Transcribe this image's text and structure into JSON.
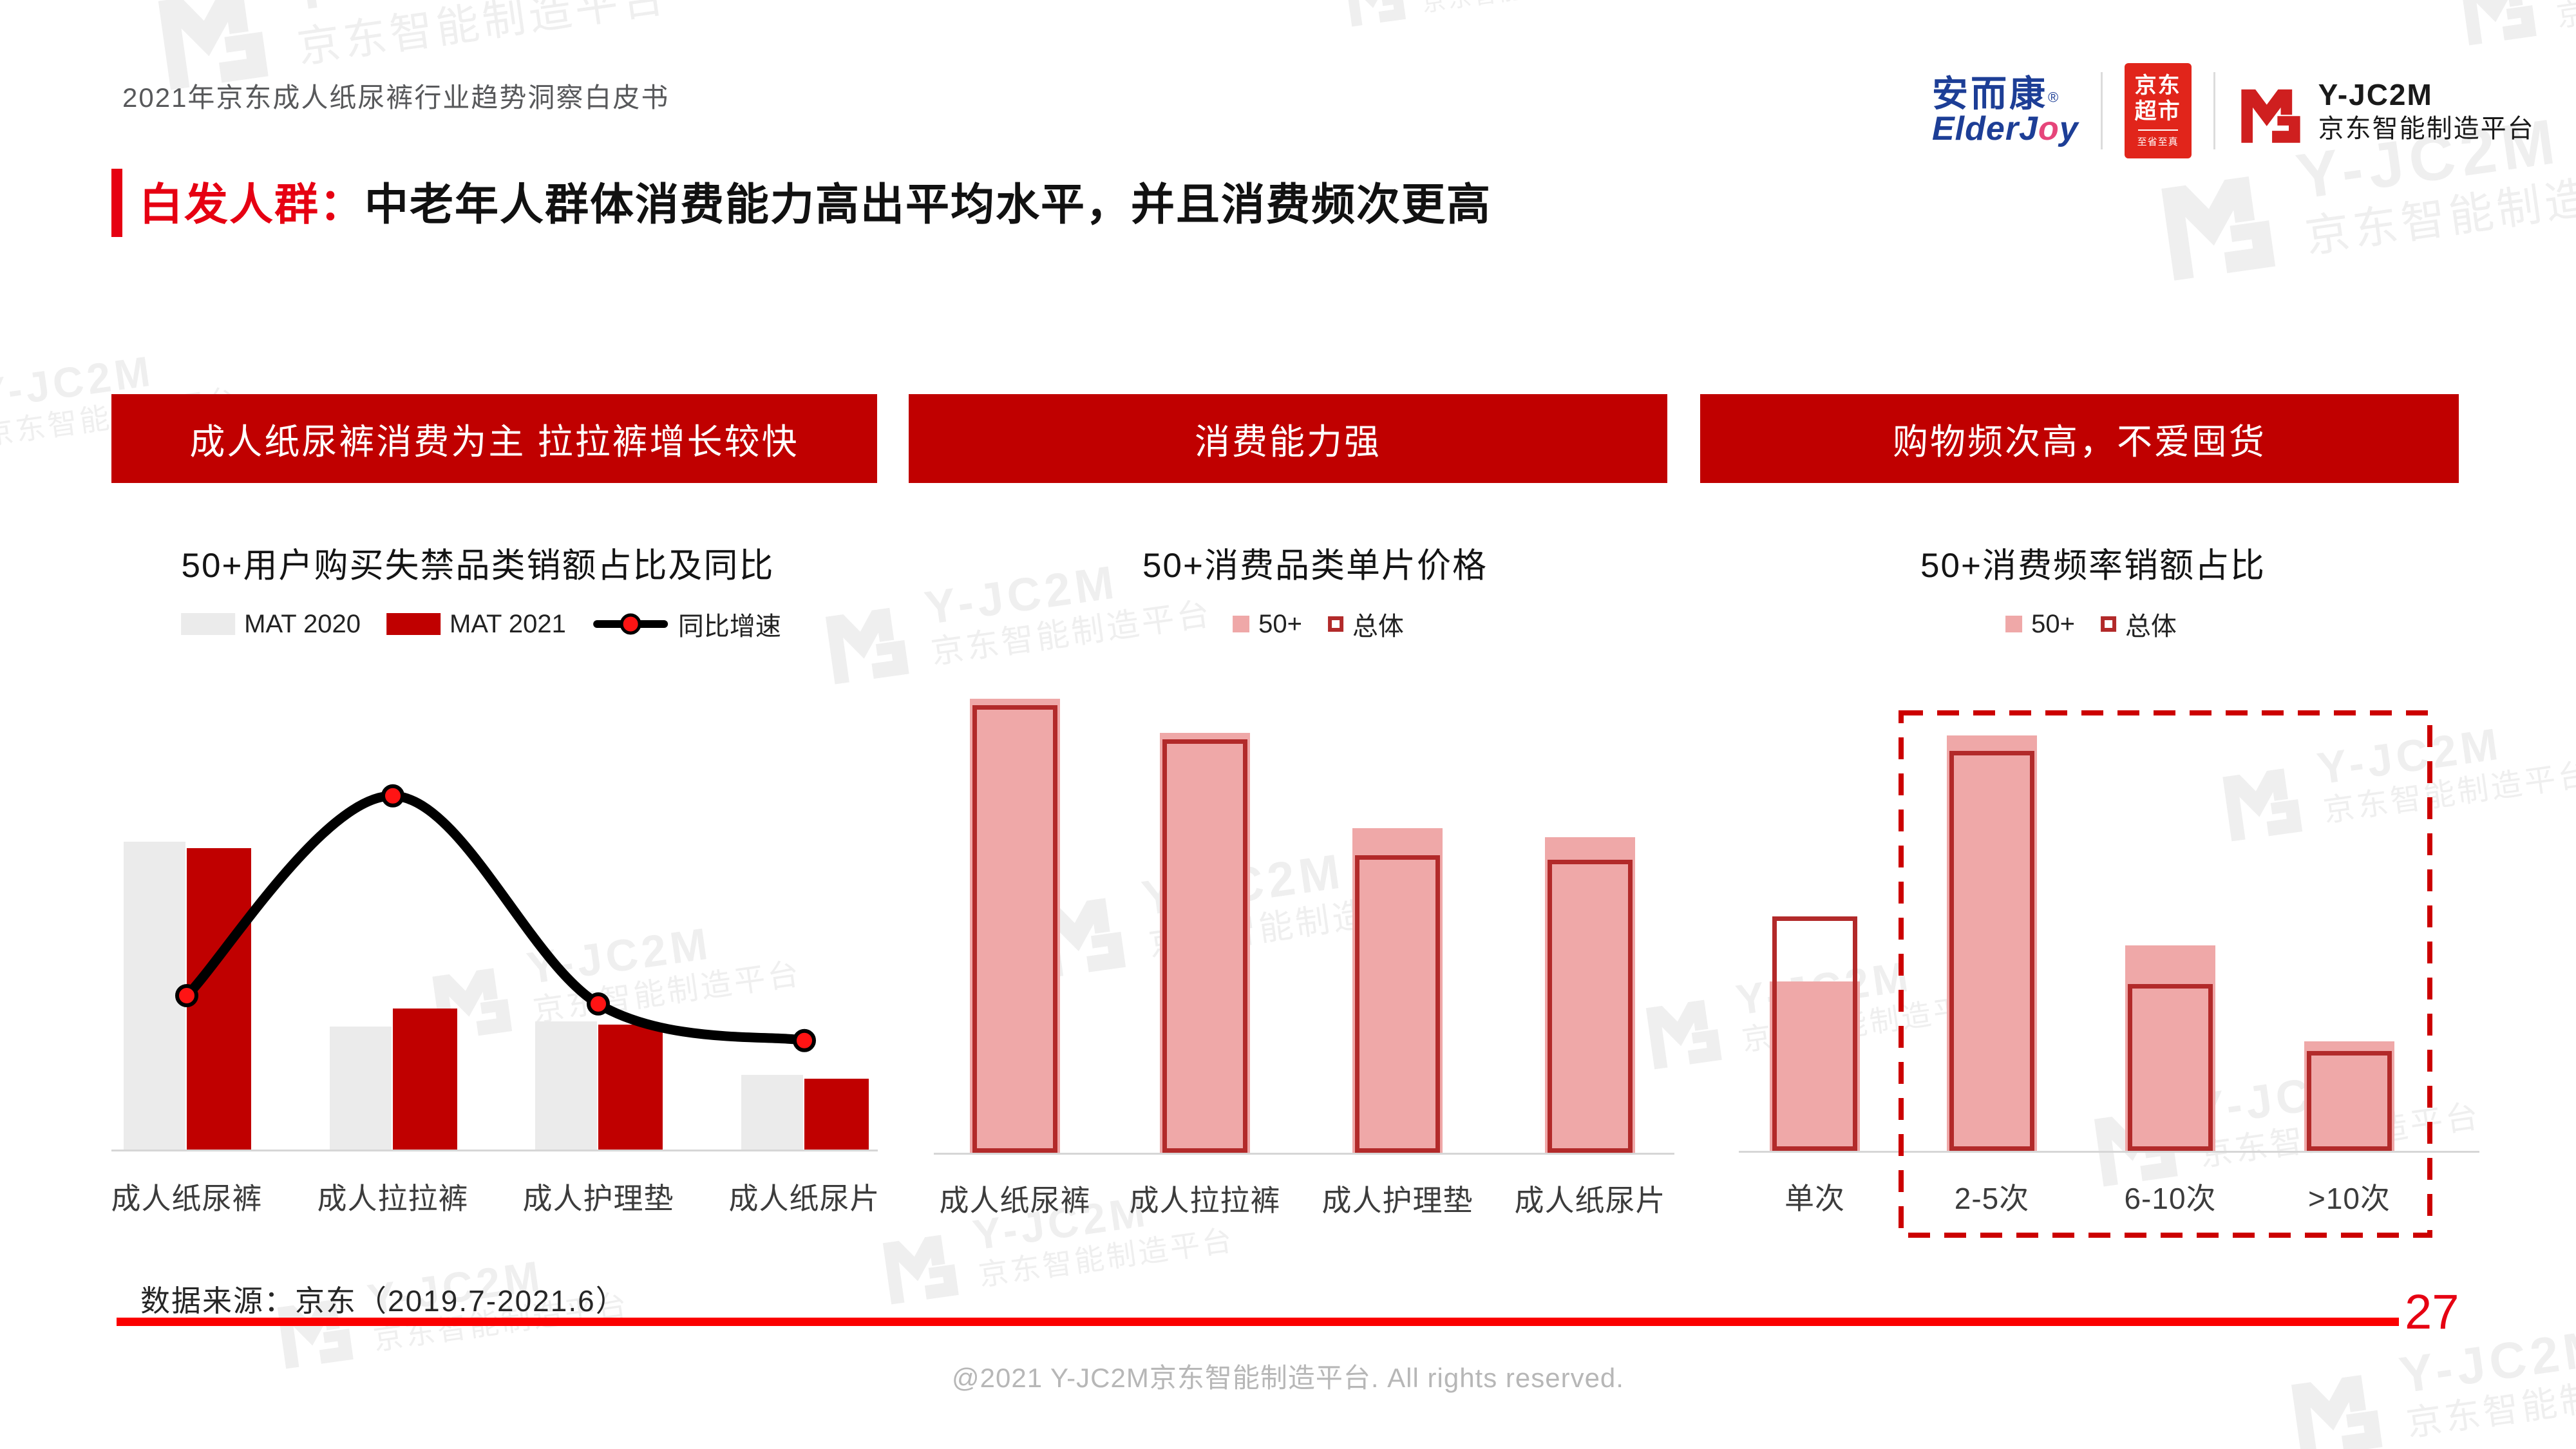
{
  "header": {
    "title": "2021年京东成人纸尿裤行业趋势洞察白皮书"
  },
  "logos": {
    "elderjoy": {
      "cn": "安而康",
      "reg": "®",
      "en_pre": "ElderJ",
      "en_o": "o",
      "en_post": "y"
    },
    "jd_market": {
      "line1": "京东",
      "line2": "超市",
      "tagline": "至省至真"
    },
    "yjc2m": {
      "name": "Y-JC2M",
      "subtitle": "京东智能制造平台"
    }
  },
  "title": {
    "highlight": "白发人群：",
    "rest": "中老年人群体消费能力高出平均水平，并且消费频次更高"
  },
  "banners": [
    "成人纸尿裤消费为主 拉拉裤增长较快",
    "消费能力强",
    "购物频次高，不爱囤货"
  ],
  "watermark": {
    "line1": "Y-JC2M",
    "line2": "京东智能制造平台"
  },
  "footer": {
    "source": "数据来源：京东（2019.7-2021.6）",
    "page": "27",
    "copyright": "@2021 Y-JC2M京东智能制造平台. All rights reserved."
  },
  "chart_data": [
    {
      "id": "category-share-yoy",
      "type": "bar",
      "title": "50+用户购买失禁品类销额占比及同比",
      "categories": [
        "成人纸尿裤",
        "成人拉拉裤",
        "成人护理垫",
        "成人纸尿片"
      ],
      "value_scale": "relative height, 0-100 (no numeric axis shown in source)",
      "series": [
        {
          "name": "MAT 2020",
          "color": "#ebebeb",
          "values": [
            100,
            40,
            41.6,
            24.3
          ]
        },
        {
          "name": "MAT 2021",
          "color": "#c00000",
          "values": [
            97.9,
            45.8,
            40.6,
            23
          ]
        }
      ],
      "line_series": {
        "name": "同比增速",
        "color": "#000000",
        "marker_color": "#ff1414",
        "values": [
          50,
          114.9,
          47.3,
          35.4
        ]
      },
      "legend_position": "top",
      "grid": false,
      "ylim": [
        0,
        122
      ]
    },
    {
      "id": "price-per-piece",
      "type": "bar",
      "title": "50+消费品类单片价格",
      "categories": [
        "成人纸尿裤",
        "成人拉拉裤",
        "成人护理垫",
        "成人纸尿片"
      ],
      "value_scale": "relative height, 0-100 (no numeric axis shown in source)",
      "series": [
        {
          "name": "50+",
          "style": "filled",
          "color": "#efa8a8",
          "values": [
            100,
            92.5,
            71.5,
            69.5
          ]
        },
        {
          "name": "总体",
          "style": "outlined",
          "color": "#b22a2a",
          "values": [
            98.6,
            91.1,
            65.5,
            64.5
          ]
        }
      ],
      "legend_position": "top",
      "grid": false,
      "ylim": [
        0,
        100
      ]
    },
    {
      "id": "purchase-frequency-share",
      "type": "bar",
      "title": "50+消费频率销额占比",
      "categories": [
        "单次",
        "2-5次",
        "6-10次",
        ">10次"
      ],
      "value_scale": "relative height, 0-100 (no numeric axis shown in source)",
      "series": [
        {
          "name": "50+",
          "style": "filled",
          "color": "#efa8a8",
          "values": [
            40.8,
            100,
            49.5,
            26.4
          ]
        },
        {
          "name": "总体",
          "style": "outlined",
          "color": "#b22a2a",
          "values": [
            56.4,
            96.3,
            40.2,
            24
          ]
        }
      ],
      "highlight_box": {
        "categories": [
          "2-5次",
          "6-10次",
          ">10次"
        ],
        "color": "#cc0000",
        "style": "dashed"
      },
      "legend_position": "top",
      "grid": false,
      "ylim": [
        0,
        100
      ]
    }
  ]
}
